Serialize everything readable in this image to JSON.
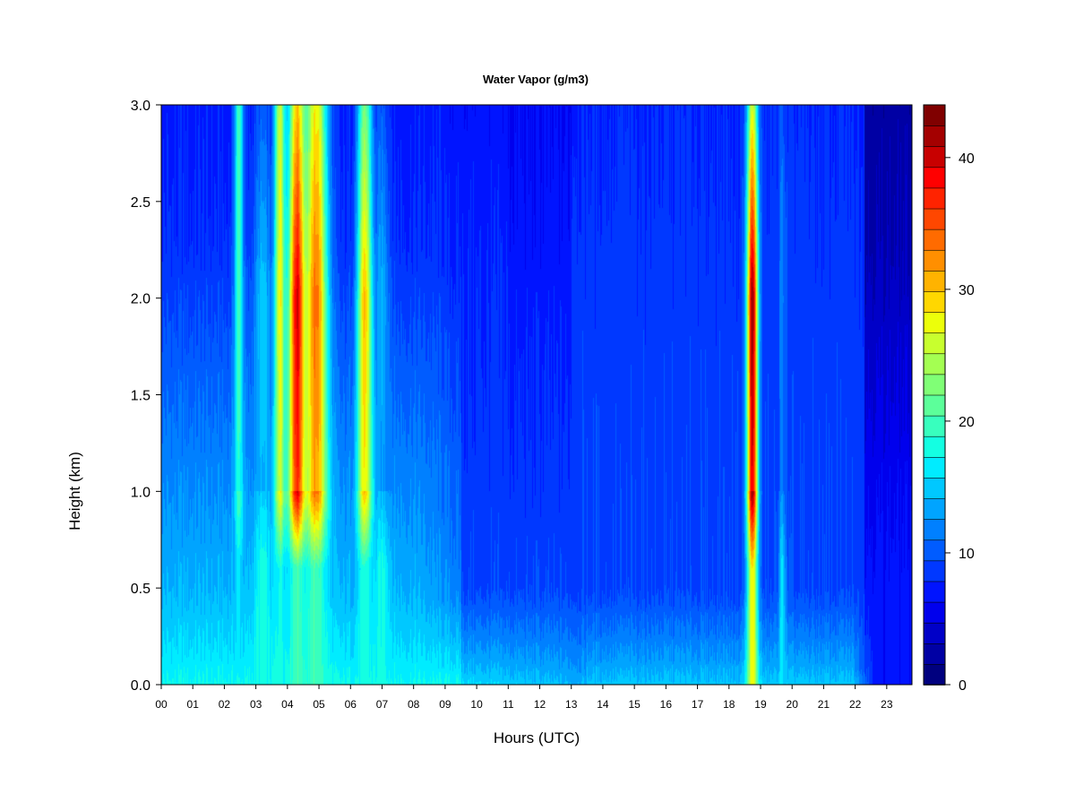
{
  "chart_data": {
    "type": "heatmap",
    "title": "Water Vapor (g/m3)",
    "xlabel": "Hours (UTC)",
    "ylabel": "Height (km)",
    "xlim": [
      0,
      23.8
    ],
    "ylim": [
      0,
      3.0
    ],
    "x_ticks": [
      "00",
      "01",
      "02",
      "03",
      "04",
      "05",
      "06",
      "07",
      "08",
      "09",
      "10",
      "11",
      "12",
      "13",
      "14",
      "15",
      "16",
      "17",
      "18",
      "19",
      "20",
      "21",
      "22",
      "23"
    ],
    "y_ticks": [
      "0.0",
      "0.5",
      "1.0",
      "1.5",
      "2.0",
      "2.5",
      "3.0"
    ],
    "colorbar": {
      "min": 0,
      "max": 44,
      "step": 2,
      "ticks": [
        "0",
        "10",
        "20",
        "30",
        "40"
      ],
      "tick_values": [
        0,
        10,
        20,
        30,
        40
      ],
      "colors": [
        "#00007f",
        "#0000a4",
        "#0000c8",
        "#0000ed",
        "#0014ff",
        "#0038ff",
        "#005cff",
        "#0080ff",
        "#00a4ff",
        "#00c8ff",
        "#00ecff",
        "#14ffe2",
        "#38ffbe",
        "#5cff9a",
        "#80ff76",
        "#a4ff52",
        "#c8ff2e",
        "#ecff0a",
        "#ffd700",
        "#ffb300",
        "#ff8f00",
        "#ff6b00",
        "#ff4700",
        "#ff2300",
        "#ff0000",
        "#c80000",
        "#a40000",
        "#800000"
      ]
    },
    "features": [
      {
        "x_center": 2.45,
        "width": 0.18,
        "z_low": 16,
        "z_mid": 20,
        "z_high": 20
      },
      {
        "x_center": 3.75,
        "width": 0.22,
        "z_low": 18,
        "z_mid": 28,
        "z_high": 26
      },
      {
        "x_center": 4.3,
        "width": 0.35,
        "z_low": 20,
        "z_mid": 40,
        "z_high": 30
      },
      {
        "x_center": 4.9,
        "width": 0.45,
        "z_low": 20,
        "z_mid": 34,
        "z_high": 28
      },
      {
        "x_center": 3.2,
        "width": 0.35,
        "z_low": 18,
        "z_mid": 15,
        "z_high": 10
      },
      {
        "x_center": 6.45,
        "width": 0.3,
        "z_low": 18,
        "z_mid": 30,
        "z_high": 22
      },
      {
        "x_center": 7.0,
        "width": 0.3,
        "z_low": 18,
        "z_mid": 14,
        "z_high": 10
      },
      {
        "x_center": 18.75,
        "width": 0.22,
        "z_low": 28,
        "z_mid": 42,
        "z_high": 26
      },
      {
        "x_center": 19.7,
        "width": 0.15,
        "z_low": 16,
        "z_mid": 12,
        "z_high": 10
      }
    ]
  }
}
